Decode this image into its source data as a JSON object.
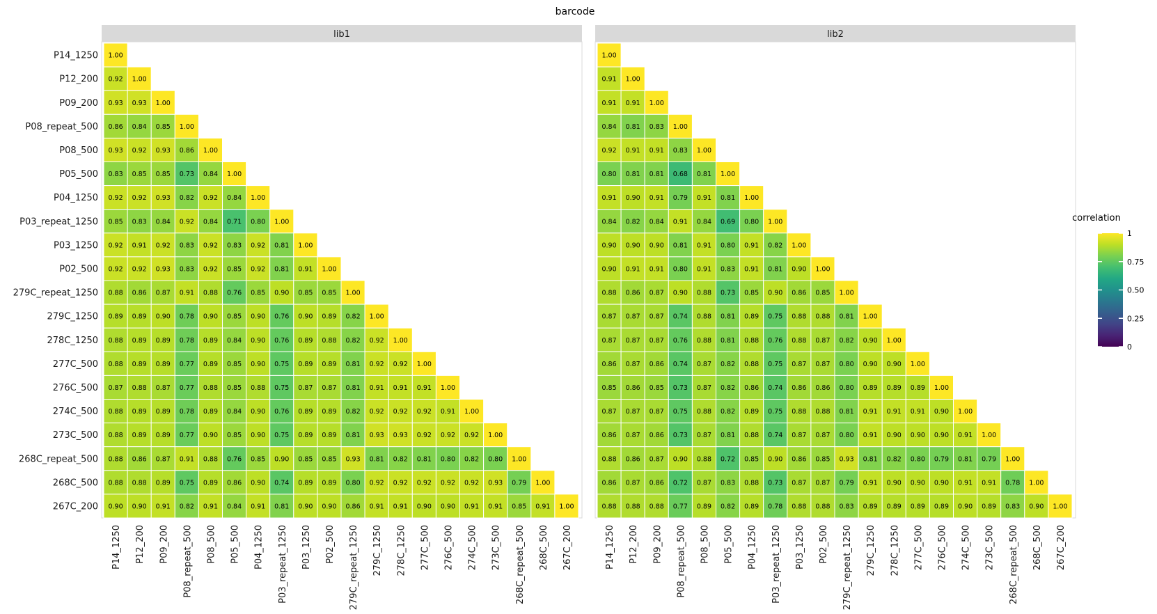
{
  "chart_data": {
    "type": "heatmap",
    "title": "barcode",
    "legend": {
      "title": "correlation",
      "ticks": [
        "1",
        "0.75",
        "0.50",
        "0.25",
        "0"
      ],
      "range": [
        0,
        1
      ],
      "placement": "right"
    },
    "colors": {
      "strip": "#d9d9d9",
      "cell_border": "#ffffff"
    },
    "labels": [
      "P14_1250",
      "P12_200",
      "P09_200",
      "P08_repeat_500",
      "P08_500",
      "P05_500",
      "P04_1250",
      "P03_repeat_1250",
      "P03_1250",
      "P02_500",
      "279C_repeat_1250",
      "279C_1250",
      "278C_1250",
      "277C_500",
      "276C_500",
      "274C_500",
      "273C_500",
      "268C_repeat_500",
      "268C_500",
      "267C_200"
    ],
    "panels": [
      {
        "name": "lib1",
        "rows": [
          [
            "1.00"
          ],
          [
            "0.92",
            "1.00"
          ],
          [
            "0.93",
            "0.93",
            "1.00"
          ],
          [
            "0.86",
            "0.84",
            "0.85",
            "1.00"
          ],
          [
            "0.93",
            "0.92",
            "0.93",
            "0.86",
            "1.00"
          ],
          [
            "0.83",
            "0.85",
            "0.85",
            "0.73",
            "0.84",
            "1.00"
          ],
          [
            "0.92",
            "0.92",
            "0.93",
            "0.82",
            "0.92",
            "0.84",
            "1.00"
          ],
          [
            "0.85",
            "0.83",
            "0.84",
            "0.92",
            "0.84",
            "0.71",
            "0.80",
            "1.00"
          ],
          [
            "0.92",
            "0.91",
            "0.92",
            "0.83",
            "0.92",
            "0.83",
            "0.92",
            "0.81",
            "1.00"
          ],
          [
            "0.92",
            "0.92",
            "0.93",
            "0.83",
            "0.92",
            "0.85",
            "0.92",
            "0.81",
            "0.91",
            "1.00"
          ],
          [
            "0.88",
            "0.86",
            "0.87",
            "0.91",
            "0.88",
            "0.76",
            "0.85",
            "0.90",
            "0.85",
            "0.85",
            "1.00"
          ],
          [
            "0.89",
            "0.89",
            "0.90",
            "0.78",
            "0.90",
            "0.85",
            "0.90",
            "0.76",
            "0.90",
            "0.89",
            "0.82",
            "1.00"
          ],
          [
            "0.88",
            "0.89",
            "0.89",
            "0.78",
            "0.89",
            "0.84",
            "0.90",
            "0.76",
            "0.89",
            "0.88",
            "0.82",
            "0.92",
            "1.00"
          ],
          [
            "0.88",
            "0.89",
            "0.89",
            "0.77",
            "0.89",
            "0.85",
            "0.90",
            "0.75",
            "0.89",
            "0.89",
            "0.81",
            "0.92",
            "0.92",
            "1.00"
          ],
          [
            "0.87",
            "0.88",
            "0.87",
            "0.77",
            "0.88",
            "0.85",
            "0.88",
            "0.75",
            "0.87",
            "0.87",
            "0.81",
            "0.91",
            "0.91",
            "0.91",
            "1.00"
          ],
          [
            "0.88",
            "0.89",
            "0.89",
            "0.78",
            "0.89",
            "0.84",
            "0.90",
            "0.76",
            "0.89",
            "0.89",
            "0.82",
            "0.92",
            "0.92",
            "0.92",
            "0.91",
            "1.00"
          ],
          [
            "0.88",
            "0.89",
            "0.89",
            "0.77",
            "0.90",
            "0.85",
            "0.90",
            "0.75",
            "0.89",
            "0.89",
            "0.81",
            "0.93",
            "0.93",
            "0.92",
            "0.92",
            "0.92",
            "1.00"
          ],
          [
            "0.88",
            "0.86",
            "0.87",
            "0.91",
            "0.88",
            "0.76",
            "0.85",
            "0.90",
            "0.85",
            "0.85",
            "0.93",
            "0.81",
            "0.82",
            "0.81",
            "0.80",
            "0.82",
            "0.80",
            "1.00"
          ],
          [
            "0.88",
            "0.88",
            "0.89",
            "0.75",
            "0.89",
            "0.86",
            "0.90",
            "0.74",
            "0.89",
            "0.89",
            "0.80",
            "0.92",
            "0.92",
            "0.92",
            "0.92",
            "0.92",
            "0.93",
            "0.79",
            "1.00"
          ],
          [
            "0.90",
            "0.90",
            "0.91",
            "0.82",
            "0.91",
            "0.84",
            "0.91",
            "0.81",
            "0.90",
            "0.90",
            "0.86",
            "0.91",
            "0.91",
            "0.90",
            "0.90",
            "0.91",
            "0.91",
            "0.85",
            "0.91",
            "1.00"
          ]
        ]
      },
      {
        "name": "lib2",
        "rows": [
          [
            "1.00"
          ],
          [
            "0.91",
            "1.00"
          ],
          [
            "0.91",
            "0.91",
            "1.00"
          ],
          [
            "0.84",
            "0.81",
            "0.83",
            "1.00"
          ],
          [
            "0.92",
            "0.91",
            "0.91",
            "0.83",
            "1.00"
          ],
          [
            "0.80",
            "0.81",
            "0.81",
            "0.68",
            "0.81",
            "1.00"
          ],
          [
            "0.91",
            "0.90",
            "0.91",
            "0.79",
            "0.91",
            "0.81",
            "1.00"
          ],
          [
            "0.84",
            "0.82",
            "0.84",
            "0.91",
            "0.84",
            "0.69",
            "0.80",
            "1.00"
          ],
          [
            "0.90",
            "0.90",
            "0.90",
            "0.81",
            "0.91",
            "0.80",
            "0.91",
            "0.82",
            "1.00"
          ],
          [
            "0.90",
            "0.91",
            "0.91",
            "0.80",
            "0.91",
            "0.83",
            "0.91",
            "0.81",
            "0.90",
            "1.00"
          ],
          [
            "0.88",
            "0.86",
            "0.87",
            "0.90",
            "0.88",
            "0.73",
            "0.85",
            "0.90",
            "0.86",
            "0.85",
            "1.00"
          ],
          [
            "0.87",
            "0.87",
            "0.87",
            "0.74",
            "0.88",
            "0.81",
            "0.89",
            "0.75",
            "0.88",
            "0.88",
            "0.81",
            "1.00"
          ],
          [
            "0.87",
            "0.87",
            "0.87",
            "0.76",
            "0.88",
            "0.81",
            "0.88",
            "0.76",
            "0.88",
            "0.87",
            "0.82",
            "0.90",
            "1.00"
          ],
          [
            "0.86",
            "0.87",
            "0.86",
            "0.74",
            "0.87",
            "0.82",
            "0.88",
            "0.75",
            "0.87",
            "0.87",
            "0.80",
            "0.90",
            "0.90",
            "1.00"
          ],
          [
            "0.85",
            "0.86",
            "0.85",
            "0.73",
            "0.87",
            "0.82",
            "0.86",
            "0.74",
            "0.86",
            "0.86",
            "0.80",
            "0.89",
            "0.89",
            "0.89",
            "1.00"
          ],
          [
            "0.87",
            "0.87",
            "0.87",
            "0.75",
            "0.88",
            "0.82",
            "0.89",
            "0.75",
            "0.88",
            "0.88",
            "0.81",
            "0.91",
            "0.91",
            "0.91",
            "0.90",
            "1.00"
          ],
          [
            "0.86",
            "0.87",
            "0.86",
            "0.73",
            "0.87",
            "0.81",
            "0.88",
            "0.74",
            "0.87",
            "0.87",
            "0.80",
            "0.91",
            "0.90",
            "0.90",
            "0.90",
            "0.91",
            "1.00"
          ],
          [
            "0.88",
            "0.86",
            "0.87",
            "0.90",
            "0.88",
            "0.72",
            "0.85",
            "0.90",
            "0.86",
            "0.85",
            "0.93",
            "0.81",
            "0.82",
            "0.80",
            "0.79",
            "0.81",
            "0.79",
            "1.00"
          ],
          [
            "0.86",
            "0.87",
            "0.86",
            "0.72",
            "0.87",
            "0.83",
            "0.88",
            "0.73",
            "0.87",
            "0.87",
            "0.79",
            "0.91",
            "0.90",
            "0.90",
            "0.90",
            "0.91",
            "0.91",
            "0.78",
            "1.00"
          ],
          [
            "0.88",
            "0.88",
            "0.88",
            "0.77",
            "0.89",
            "0.82",
            "0.89",
            "0.78",
            "0.88",
            "0.88",
            "0.83",
            "0.89",
            "0.89",
            "0.89",
            "0.89",
            "0.90",
            "0.89",
            "0.83",
            "0.90",
            "1.00"
          ]
        ]
      }
    ]
  }
}
